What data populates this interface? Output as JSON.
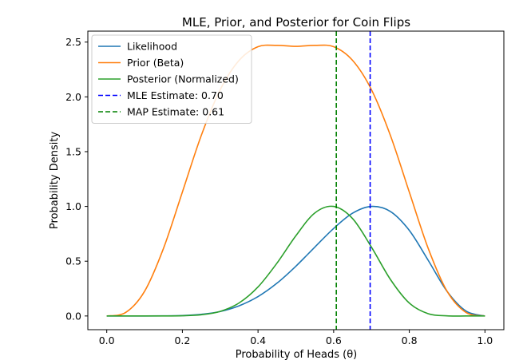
{
  "chart_data": {
    "type": "line",
    "title": "MLE, Prior, and Posterior for Coin Flips",
    "xlabel": "Probability of Heads (θ)",
    "ylabel": "Probability Density",
    "xlim": [
      -0.05,
      1.05
    ],
    "ylim": [
      -0.125,
      2.6
    ],
    "xticks": [
      0.0,
      0.2,
      0.4,
      0.6,
      0.8,
      1.0
    ],
    "xtick_labels": [
      "0.0",
      "0.2",
      "0.4",
      "0.6",
      "0.8",
      "1.0"
    ],
    "yticks": [
      0.0,
      0.5,
      1.0,
      1.5,
      2.0,
      2.5
    ],
    "ytick_labels": [
      "0.0",
      "0.5",
      "1.0",
      "1.5",
      "2.0",
      "2.5"
    ],
    "grid": false,
    "legend_position": "top-left",
    "series": [
      {
        "name": "Likelihood",
        "color": "#1f77b4",
        "style": "solid",
        "x": [
          0.0,
          0.05,
          0.1,
          0.15,
          0.2,
          0.25,
          0.3,
          0.35,
          0.4,
          0.45,
          0.5,
          0.55,
          0.6,
          0.65,
          0.7,
          0.75,
          0.8,
          0.85,
          0.9,
          0.95,
          1.0
        ],
        "values": [
          0.0,
          0.0,
          0.0001,
          0.001,
          0.004,
          0.015,
          0.041,
          0.093,
          0.177,
          0.299,
          0.454,
          0.628,
          0.799,
          0.938,
          1.0,
          0.954,
          0.781,
          0.508,
          0.224,
          0.045,
          0.0
        ]
      },
      {
        "name": "Prior (Beta)",
        "color": "#ff7f0e",
        "style": "solid",
        "x": [
          0.0,
          0.05,
          0.1,
          0.15,
          0.2,
          0.25,
          0.3,
          0.35,
          0.4,
          0.45,
          0.5,
          0.55,
          0.6,
          0.65,
          0.7,
          0.75,
          0.8,
          0.85,
          0.9,
          0.95,
          1.0
        ],
        "values": [
          0.0,
          0.032,
          0.225,
          0.617,
          1.131,
          1.648,
          2.065,
          2.333,
          2.458,
          2.47,
          2.461,
          2.47,
          2.458,
          2.333,
          2.065,
          1.648,
          1.131,
          0.617,
          0.225,
          0.032,
          0.0
        ]
      },
      {
        "name": "Posterior (Normalized)",
        "color": "#2ca02c",
        "style": "solid",
        "x": [
          0.0,
          0.05,
          0.1,
          0.15,
          0.2,
          0.25,
          0.3,
          0.35,
          0.4,
          0.45,
          0.5,
          0.55,
          0.6,
          0.65,
          0.7,
          0.75,
          0.8,
          0.85,
          0.9,
          0.95,
          1.0
        ],
        "values": [
          0.0,
          0.0,
          0.0,
          0.0,
          0.002,
          0.011,
          0.042,
          0.119,
          0.265,
          0.482,
          0.732,
          0.94,
          1.0,
          0.889,
          0.628,
          0.334,
          0.118,
          0.021,
          0.001,
          0.0,
          0.0
        ]
      }
    ],
    "vlines": [
      {
        "name": "MLE Estimate: 0.70",
        "x": 0.6965,
        "color": "#0000ff",
        "style": "dashed"
      },
      {
        "name": "MAP Estimate: 0.61",
        "x": 0.607,
        "color": "#008000",
        "style": "dashed"
      }
    ]
  }
}
